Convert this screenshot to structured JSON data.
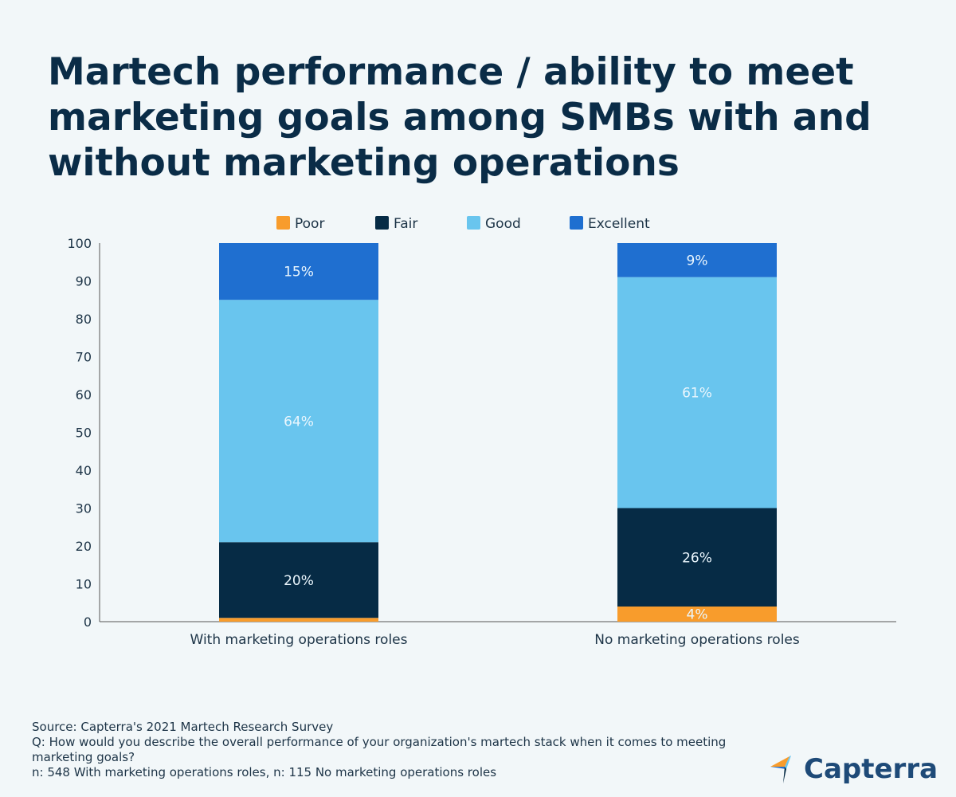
{
  "chart_data": {
    "type": "bar",
    "stacked": true,
    "title": "Martech performance / ability to meet marketing goals among SMBs with and without marketing operations",
    "categories": [
      "With marketing operations roles",
      "No marketing operations roles"
    ],
    "series": [
      {
        "name": "Poor",
        "color": "#f89c2c",
        "values": [
          1,
          4
        ],
        "labels": [
          "",
          "4%"
        ]
      },
      {
        "name": "Fair",
        "color": "#062b45",
        "values": [
          20,
          26
        ],
        "labels": [
          "20%",
          "26%"
        ]
      },
      {
        "name": "Good",
        "color": "#69c5ee",
        "values": [
          64,
          61
        ],
        "labels": [
          "64%",
          "61%"
        ]
      },
      {
        "name": "Excellent",
        "color": "#1f6fd0",
        "values": [
          15,
          9
        ],
        "labels": [
          "15%",
          "9%"
        ]
      }
    ],
    "ylim": [
      0,
      100
    ],
    "yticks": [
      0,
      10,
      20,
      30,
      40,
      50,
      60,
      70,
      80,
      90,
      100
    ],
    "grid": false,
    "legend": "top-center"
  },
  "footer": {
    "source": "Source: Capterra's 2021 Martech Research Survey",
    "question": "Q: How would you describe the overall performance of your organization's martech stack when it comes to meeting marketing goals?",
    "sample": "n: 548 With marketing operations roles, n: 115 No marketing operations roles"
  },
  "logo": {
    "text": "Capterra"
  }
}
